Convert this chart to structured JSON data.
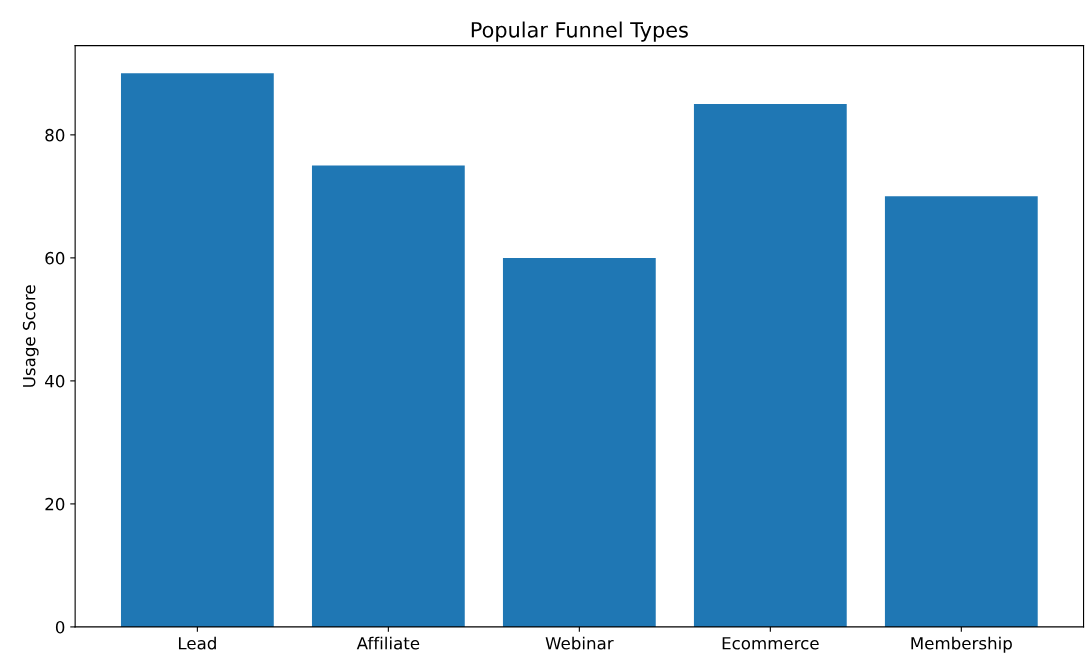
{
  "chart_data": {
    "type": "bar",
    "title": "Popular Funnel Types",
    "ylabel": "Usage Score",
    "categories": [
      "Lead",
      "Affiliate",
      "Webinar",
      "Ecommerce",
      "Membership"
    ],
    "values": [
      90,
      75,
      60,
      85,
      70
    ],
    "color": "#1f77b4",
    "ylim": [
      0,
      94.5
    ],
    "yticks": [
      0,
      20,
      40,
      60,
      80
    ],
    "grid": false
  }
}
